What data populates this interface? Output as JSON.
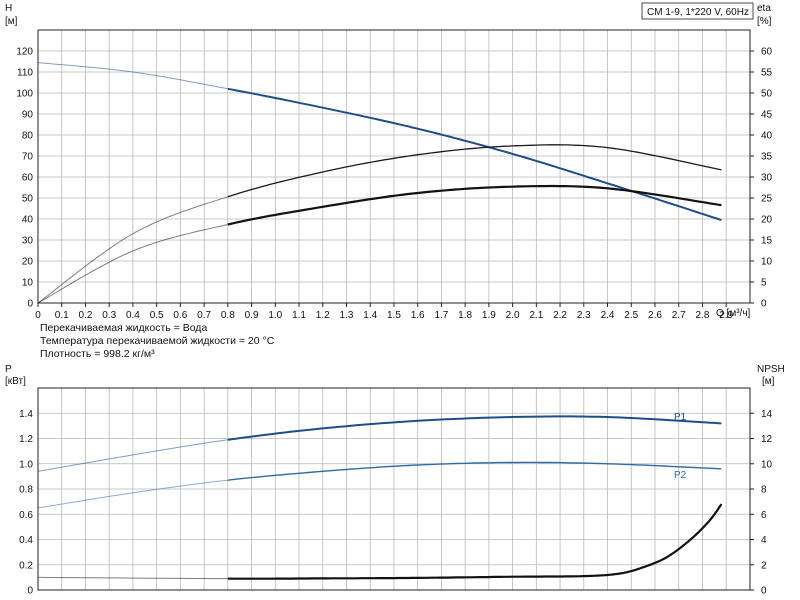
{
  "chart_data": [
    {
      "type": "line",
      "title": "CM 1-9, 1*220 V, 60Hz",
      "xlabel": "Q [м³/ч]",
      "ylabel_left": {
        "name": "H",
        "unit": "[м]"
      },
      "ylabel_right": {
        "name": "eta",
        "unit": "[%]"
      },
      "xlim": [
        0,
        3.0
      ],
      "ylim_left": [
        0,
        130
      ],
      "ylim_right": [
        0,
        65
      ],
      "grid": true,
      "xticks": [
        "0",
        "0.1",
        "0.2",
        "0.3",
        "0.4",
        "0.5",
        "0.6",
        "0.7",
        "0.8",
        "0.9",
        "1.0",
        "1.1",
        "1.2",
        "1.3",
        "1.4",
        "1.5",
        "1.6",
        "1.7",
        "1.8",
        "1.9",
        "2.0",
        "2.1",
        "2.2",
        "2.3",
        "2.4",
        "2.5",
        "2.6",
        "2.7",
        "2.8",
        "2.9"
      ],
      "yticks_left": [
        "0",
        "10",
        "20",
        "30",
        "40",
        "50",
        "60",
        "70",
        "80",
        "90",
        "100",
        "110",
        "120"
      ],
      "yticks_right": [
        "0",
        "5",
        "10",
        "15",
        "20",
        "25",
        "30",
        "35",
        "40",
        "45",
        "50",
        "55",
        "60"
      ],
      "series": [
        {
          "id": "H",
          "axis": "left",
          "color": "#1f4e8c",
          "width": 2,
          "x": [
            0,
            0.4,
            0.8,
            1.2,
            1.6,
            2.0,
            2.4,
            2.88
          ],
          "y": [
            114.5,
            110,
            102,
            93,
            83,
            71,
            57,
            39.5
          ]
        },
        {
          "id": "eta_p1",
          "axis": "right",
          "color": "#1a1a1a",
          "width": 1.3,
          "x": [
            0,
            0.4,
            0.8,
            1.2,
            1.6,
            2.0,
            2.4,
            2.88
          ],
          "y": [
            0,
            16.5,
            25.3,
            31.2,
            35.3,
            37.4,
            37.0,
            31.7
          ]
        },
        {
          "id": "eta_p2",
          "axis": "right",
          "color": "#111111",
          "width": 2.2,
          "x": [
            0,
            0.4,
            0.8,
            1.2,
            1.6,
            2.0,
            2.4,
            2.88
          ],
          "y": [
            0,
            12.4,
            18.7,
            22.9,
            26.2,
            27.7,
            27.3,
            23.3
          ]
        }
      ],
      "dim_until_x": 0.8
    },
    {
      "type": "line",
      "ylabel_left": {
        "name": "P",
        "unit": "[кВт]"
      },
      "ylabel_right": {
        "name": "NPSH",
        "unit": "[м]"
      },
      "xlim": [
        0,
        3.0
      ],
      "ylim_left": [
        0,
        1.6
      ],
      "ylim_right": [
        0,
        16
      ],
      "grid": true,
      "yticks_left": [
        "0",
        "0.2",
        "0.4",
        "0.6",
        "0.8",
        "1.0",
        "1.2",
        "1.4"
      ],
      "yticks_right": [
        "0",
        "2",
        "4",
        "6",
        "8",
        "10",
        "12",
        "14"
      ],
      "series": [
        {
          "id": "P1",
          "name": "P1",
          "axis": "left",
          "color": "#1f4e8c",
          "width": 2,
          "x": [
            0,
            0.4,
            0.8,
            1.2,
            1.6,
            2.0,
            2.4,
            2.88
          ],
          "y": [
            0.94,
            1.07,
            1.19,
            1.28,
            1.34,
            1.37,
            1.37,
            1.32
          ]
        },
        {
          "id": "P2",
          "name": "P2",
          "axis": "left",
          "color": "#2e6aa8",
          "width": 1.4,
          "x": [
            0,
            0.4,
            0.8,
            1.2,
            1.6,
            2.0,
            2.4,
            2.88
          ],
          "y": [
            0.65,
            0.77,
            0.87,
            0.94,
            0.99,
            1.01,
            1.0,
            0.96
          ]
        },
        {
          "id": "NPSH",
          "axis": "right",
          "color": "#111111",
          "width": 2.2,
          "x": [
            0,
            0.8,
            1.2,
            1.6,
            2.0,
            2.3,
            2.45,
            2.55,
            2.65,
            2.75,
            2.83,
            2.88
          ],
          "y": [
            1.0,
            0.9,
            0.92,
            0.96,
            1.05,
            1.1,
            1.3,
            1.8,
            2.6,
            4.0,
            5.5,
            6.8
          ]
        }
      ],
      "dim_until_x": 0.8
    }
  ],
  "notes": [
    "Перекачиваемая жидкость = Вода",
    "Температура перекачиваемой жидкости = 20 °C",
    "Плотность = 998.2 кг/м³"
  ]
}
